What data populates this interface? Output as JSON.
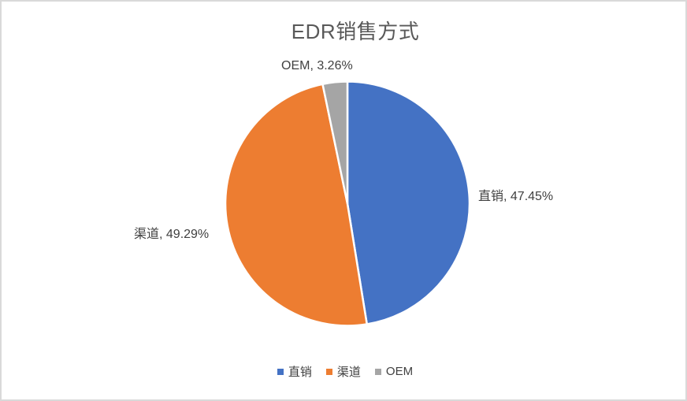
{
  "window": {
    "background": "#FFFFFF",
    "border_color": "#D9D9D9"
  },
  "chart_data": {
    "type": "pie",
    "title": "EDR销售方式",
    "categories": [
      "直销",
      "渠道",
      "OEM"
    ],
    "values": [
      47.45,
      49.29,
      3.26
    ],
    "colors": [
      "#4472C4",
      "#ED7D31",
      "#A5A5A5"
    ],
    "data_labels": [
      "直销, 47.45%",
      "渠道, 49.29%",
      "OEM, 3.26%"
    ],
    "start_angle": 0,
    "slice_border_color": "#FFFFFF",
    "title_color": "#595959",
    "label_color": "#404040",
    "legend": {
      "position": "bottom",
      "entries": [
        "直销",
        "渠道",
        "OEM"
      ]
    }
  }
}
